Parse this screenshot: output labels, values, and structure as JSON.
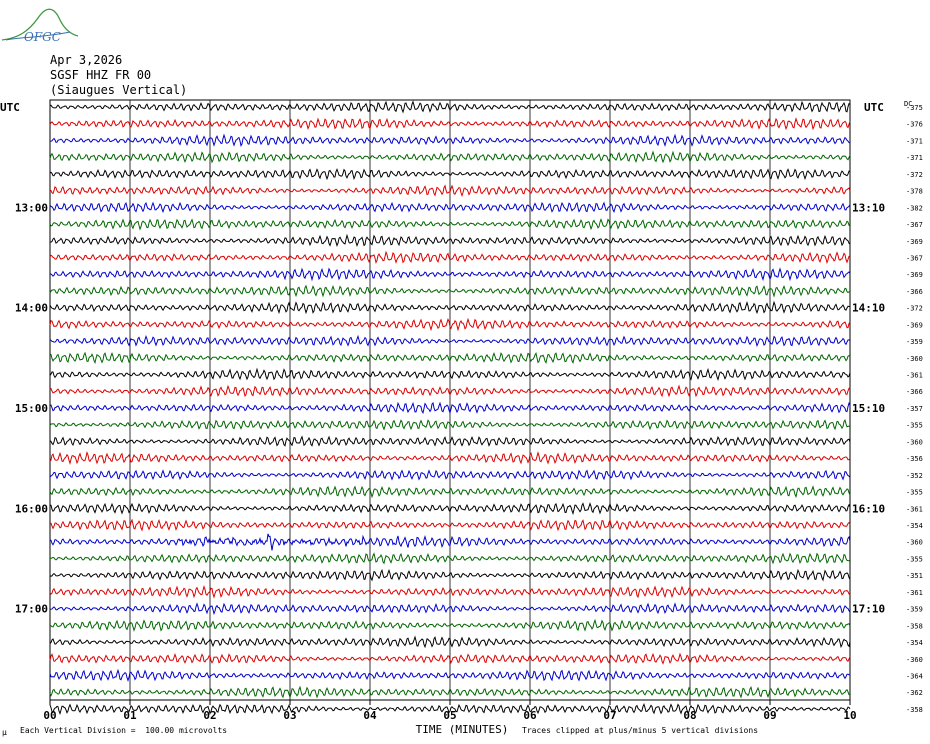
{
  "logo": {
    "text": "OFGC",
    "color": "#3a6fb0",
    "curve_color": "#3c9a3c"
  },
  "header": {
    "date": "Apr 3,2026",
    "station": "SGSF HHZ FR 00",
    "location": "(Siaugues Vertical)"
  },
  "chart_data": {
    "type": "line",
    "title": "SGSF HHZ FR 00",
    "xlabel": "TIME (MINUTES)",
    "ylabel": "",
    "xlim": [
      0,
      10
    ],
    "x_ticks": [
      "00",
      "01",
      "02",
      "03",
      "04",
      "05",
      "06",
      "07",
      "08",
      "09",
      "10"
    ],
    "left_axis_label": "UTC",
    "right_axis_label": "UTC",
    "dc_label": "DC",
    "left_hour_labels": [
      {
        "trace": 6,
        "label": "13:00"
      },
      {
        "trace": 12,
        "label": "14:00"
      },
      {
        "trace": 18,
        "label": "15:00"
      },
      {
        "trace": 24,
        "label": "16:00"
      },
      {
        "trace": 30,
        "label": "17:00"
      }
    ],
    "right_hour_labels": [
      {
        "trace": 6,
        "label": "13:10"
      },
      {
        "trace": 12,
        "label": "14:10"
      },
      {
        "trace": 18,
        "label": "15:10"
      },
      {
        "trace": 24,
        "label": "16:10"
      },
      {
        "trace": 30,
        "label": "17:10"
      }
    ],
    "trace_colors": [
      "#000000",
      "#dd0000",
      "#0000cc",
      "#006600"
    ],
    "dc_offsets": [
      "-375",
      "-376",
      "-371",
      "-371",
      "-372",
      "-378",
      "-382",
      "-367",
      "-369",
      "-367",
      "-369",
      "-366",
      "-372",
      "-369",
      "-359",
      "-360",
      "-361",
      "-366",
      "-357",
      "-355",
      "-360",
      "-356",
      "-352",
      "-355",
      "-361",
      "-354",
      "-360",
      "-355",
      "-351",
      "-361",
      "-359",
      "-358",
      "-354",
      "-360",
      "-364",
      "-362",
      "-358"
    ],
    "event_trace": 26,
    "event_start_minute": 1.6,
    "event_end_minute": 4.8,
    "gridlines": true
  },
  "footer": {
    "scale_note": "Each Vertical Division =  100.00 microvolts",
    "clip_note": "Traces clipped at plus/minus 5 vertical divisions",
    "corner_mark": "µ"
  }
}
